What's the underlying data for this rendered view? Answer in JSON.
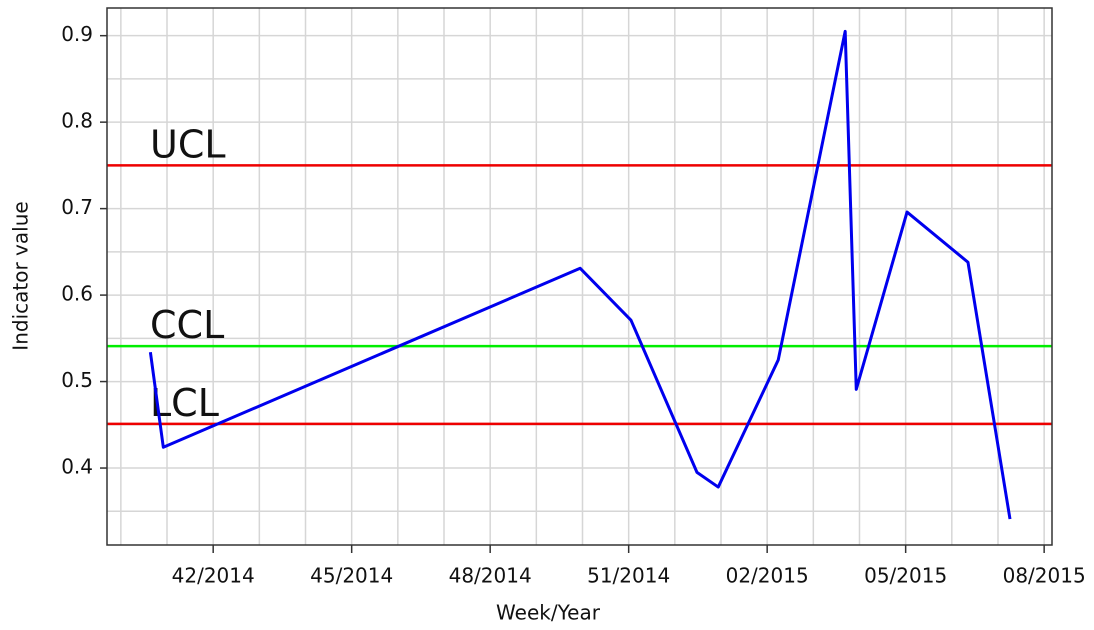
{
  "chart_data": {
    "type": "line",
    "xlabel": "Week/Year",
    "ylabel": "Indicator value",
    "x": [
      40.64,
      40.92,
      49.95,
      51.05,
      52.48,
      52.94,
      54.24,
      55.69,
      55.93,
      57.03,
      58.35,
      59.26
    ],
    "series": [
      {
        "name": "Indicator",
        "color": "#0000ee",
        "values": [
          0.534,
          0.424,
          0.631,
          0.571,
          0.395,
          0.378,
          0.525,
          0.905,
          0.491,
          0.696,
          0.638,
          0.341
        ]
      }
    ],
    "control_lines": [
      {
        "name": "UCL",
        "value": 0.75,
        "color": "#ee0000"
      },
      {
        "name": "CCL",
        "value": 0.541,
        "color": "#00ee00"
      },
      {
        "name": "LCL",
        "value": 0.451,
        "color": "#ee0000"
      }
    ],
    "xlim": [
      39.7,
      60.17
    ],
    "ylim": [
      0.311,
      0.932
    ],
    "xticks": [
      {
        "value": 42,
        "label": "42/2014"
      },
      {
        "value": 45,
        "label": "45/2014"
      },
      {
        "value": 48,
        "label": "48/2014"
      },
      {
        "value": 51,
        "label": "51/2014"
      },
      {
        "value": 54,
        "label": "02/2015"
      },
      {
        "value": 57,
        "label": "05/2015"
      },
      {
        "value": 60,
        "label": "08/2015"
      }
    ],
    "yticks": [
      0.4,
      0.5,
      0.6,
      0.7,
      0.8,
      0.9
    ],
    "xgrid": [
      40,
      41,
      42,
      43,
      44,
      45,
      46,
      47,
      48,
      49,
      50,
      51,
      52,
      53,
      54,
      55,
      56,
      57,
      58,
      59,
      60
    ],
    "ygrid": [
      0.35,
      0.4,
      0.45,
      0.5,
      0.55,
      0.6,
      0.65,
      0.7,
      0.75,
      0.8,
      0.85,
      0.9
    ],
    "grid": true
  }
}
